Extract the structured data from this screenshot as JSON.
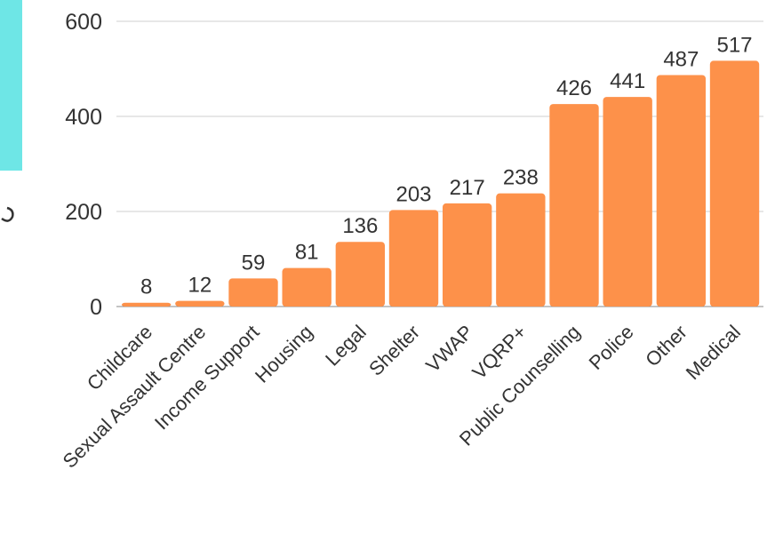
{
  "colors": {
    "bar": "#fd914a",
    "accent_panel": "#6ee6e6",
    "gridline": "#cfcfcf",
    "axis": "#888888",
    "text": "#333333"
  },
  "chart_data": {
    "type": "bar",
    "categories": [
      "Childcare",
      "Sexual Assault Centre",
      "Income Support",
      "Housing",
      "Legal",
      "Shelter",
      "VWAP",
      "VQRP+",
      "Public Counselling",
      "Police",
      "Other",
      "Medical"
    ],
    "values": [
      8,
      12,
      59,
      81,
      136,
      203,
      217,
      238,
      426,
      441,
      487,
      517
    ],
    "ylim": [
      0,
      600
    ],
    "yticks": [
      0,
      200,
      400,
      600
    ],
    "grid": true,
    "legend": "none",
    "title": "",
    "xlabel": "",
    "ylabel": ""
  }
}
